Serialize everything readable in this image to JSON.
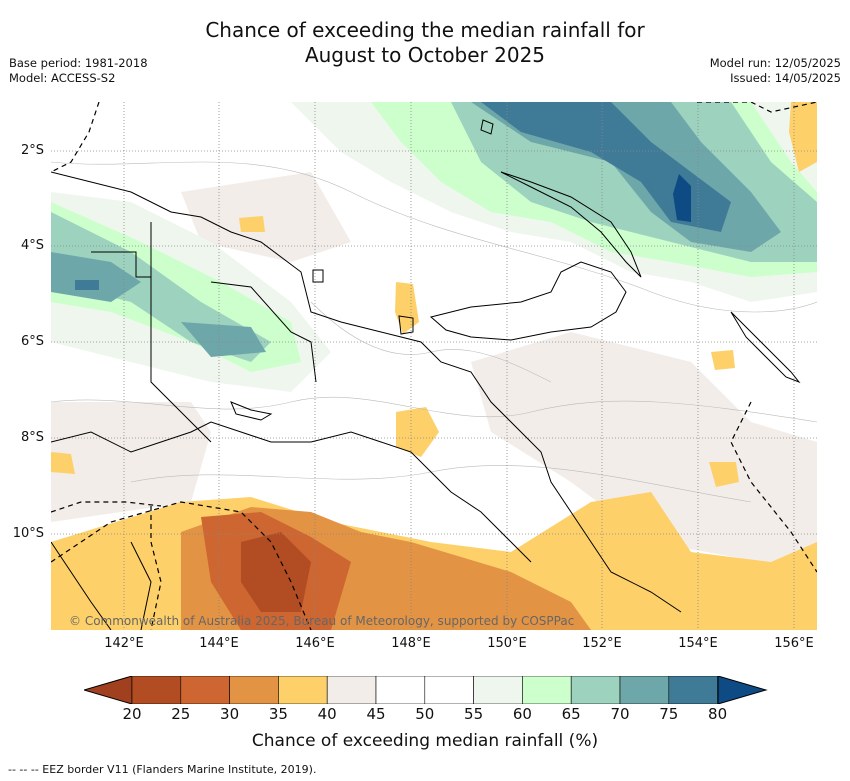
{
  "title_line1": "Chance of exceeding the median rainfall for",
  "title_line2": "August to October 2025",
  "meta_left": [
    "Base period: 1981-2018",
    "Model: ACCESS-S2"
  ],
  "meta_right": [
    "Model run: 12/05/2025",
    "Issued: 14/05/2025"
  ],
  "map": {
    "lat_labels": [
      "2°S",
      "4°S",
      "6°S",
      "8°S",
      "10°S"
    ],
    "lon_labels": [
      "142°E",
      "144°E",
      "146°E",
      "148°E",
      "150°E",
      "152°E",
      "154°E",
      "156°E"
    ],
    "copyright": "© Commonwealth of Australia 2025, Bureau of Meteorology, supported by COSPPac"
  },
  "colorbar": {
    "ticks": [
      "20",
      "25",
      "30",
      "35",
      "40",
      "45",
      "50",
      "55",
      "60",
      "65",
      "70",
      "75",
      "80"
    ],
    "colors": [
      "#b24d23",
      "#cd6630",
      "#e39344",
      "#fdd069",
      "#f2ede9",
      "#ffffff",
      "#ffffff",
      "#eef6ee",
      "#ccffcc",
      "#9dd2bf",
      "#6ea7a9",
      "#3f7b97"
    ],
    "low_extend_color": "#a0401f",
    "high_extend_color": "#0e4a84",
    "label": "Chance of exceeding median rainfall (%)"
  },
  "legend_footer": "--  --  -- EEZ border V11 (Flanders Marine Institute, 2019)."
}
